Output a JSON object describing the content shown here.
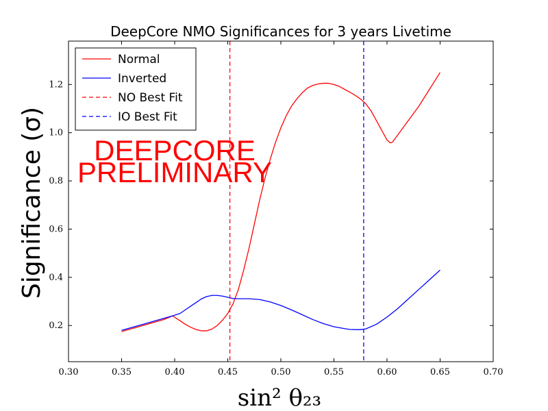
{
  "chart_data": {
    "type": "line",
    "title": "DeepCore NMO Significances for 3 years Livetime",
    "xlabel": "sin² θ₂₃",
    "ylabel": "Significance (σ)",
    "xlim": [
      0.3,
      0.7
    ],
    "ylim": [
      0.05,
      1.38
    ],
    "xticks": [
      "0.30",
      "0.35",
      "0.40",
      "0.45",
      "0.50",
      "0.55",
      "0.60",
      "0.65",
      "0.70"
    ],
    "yticks": [
      "0.2",
      "0.4",
      "0.6",
      "0.8",
      "1.0",
      "1.2"
    ],
    "grid": false,
    "legend_position": "top-left",
    "series": [
      {
        "name": "Normal",
        "color": "#ff0000",
        "style": "solid",
        "x": [
          0.35,
          0.37,
          0.39,
          0.398,
          0.405,
          0.41,
          0.415,
          0.42,
          0.425,
          0.43,
          0.435,
          0.44,
          0.445,
          0.45,
          0.455,
          0.46,
          0.465,
          0.47,
          0.475,
          0.48,
          0.485,
          0.49,
          0.495,
          0.5,
          0.505,
          0.51,
          0.515,
          0.52,
          0.525,
          0.53,
          0.535,
          0.54,
          0.545,
          0.55,
          0.555,
          0.56,
          0.565,
          0.57,
          0.575,
          0.58,
          0.585,
          0.59,
          0.595,
          0.6,
          0.603,
          0.605,
          0.61,
          0.62,
          0.63,
          0.64,
          0.65
        ],
        "values": [
          0.175,
          0.2,
          0.225,
          0.24,
          0.22,
          0.205,
          0.193,
          0.184,
          0.178,
          0.178,
          0.185,
          0.2,
          0.222,
          0.25,
          0.29,
          0.35,
          0.43,
          0.52,
          0.62,
          0.72,
          0.81,
          0.89,
          0.96,
          1.02,
          1.07,
          1.11,
          1.14,
          1.165,
          1.185,
          1.196,
          1.202,
          1.205,
          1.205,
          1.2,
          1.192,
          1.18,
          1.168,
          1.155,
          1.14,
          1.12,
          1.09,
          1.05,
          1.01,
          0.97,
          0.958,
          0.96,
          0.99,
          1.05,
          1.11,
          1.18,
          1.25
        ]
      },
      {
        "name": "Inverted",
        "color": "#0000ff",
        "style": "solid",
        "x": [
          0.35,
          0.37,
          0.39,
          0.398,
          0.405,
          0.41,
          0.415,
          0.42,
          0.425,
          0.43,
          0.435,
          0.44,
          0.445,
          0.45,
          0.455,
          0.46,
          0.47,
          0.48,
          0.49,
          0.5,
          0.51,
          0.52,
          0.53,
          0.54,
          0.55,
          0.56,
          0.565,
          0.57,
          0.575,
          0.58,
          0.59,
          0.6,
          0.61,
          0.62,
          0.63,
          0.64,
          0.65
        ],
        "values": [
          0.18,
          0.205,
          0.23,
          0.24,
          0.25,
          0.265,
          0.28,
          0.295,
          0.31,
          0.32,
          0.325,
          0.325,
          0.322,
          0.317,
          0.312,
          0.311,
          0.311,
          0.308,
          0.298,
          0.283,
          0.265,
          0.245,
          0.225,
          0.208,
          0.195,
          0.187,
          0.184,
          0.183,
          0.183,
          0.186,
          0.205,
          0.235,
          0.27,
          0.31,
          0.35,
          0.39,
          0.43
        ]
      }
    ],
    "vlines": [
      {
        "name": "NO Best Fit",
        "x": 0.452,
        "color": "#ff0000",
        "style": "dashed"
      },
      {
        "name": "IO Best Fit",
        "x": 0.578,
        "color": "#0000ff",
        "style": "dashed"
      }
    ],
    "annotation_lines": [
      "DEEPCORE",
      "PRELIMINARY"
    ]
  }
}
